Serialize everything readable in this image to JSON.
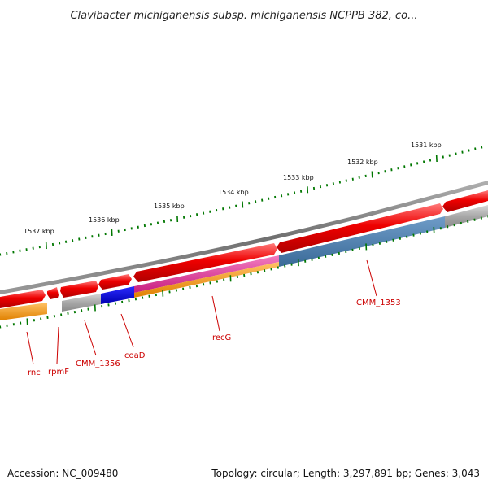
{
  "title": "Clavibacter michiganensis subsp. michiganensis NCPPB 382, co...",
  "footer": {
    "accession": "Accession: NC_009480",
    "summary": "Topology: circular; Length: 3,297,891 bp; Genes: 3,043"
  },
  "ruler_labels": [
    "1531 kbp",
    "1532 kbp",
    "1533 kbp",
    "1534 kbp",
    "1535 kbp",
    "1536 kbp",
    "1537 kbp"
  ],
  "gene_labels": [
    "CMM_1353",
    "recG",
    "coaD",
    "CMM_1356",
    "rpmF",
    "rnc"
  ],
  "colors": {
    "forward_gene": "#ee0000",
    "backbone": "#808080",
    "coaD_cds": "#0000ee",
    "recG_rna": "#e0359a",
    "orange_track": "#ff9900",
    "blue_track": "#4a7fb0",
    "grey_track": "#b0b0b0",
    "tick": "#007700",
    "label": "#cc0000"
  }
}
